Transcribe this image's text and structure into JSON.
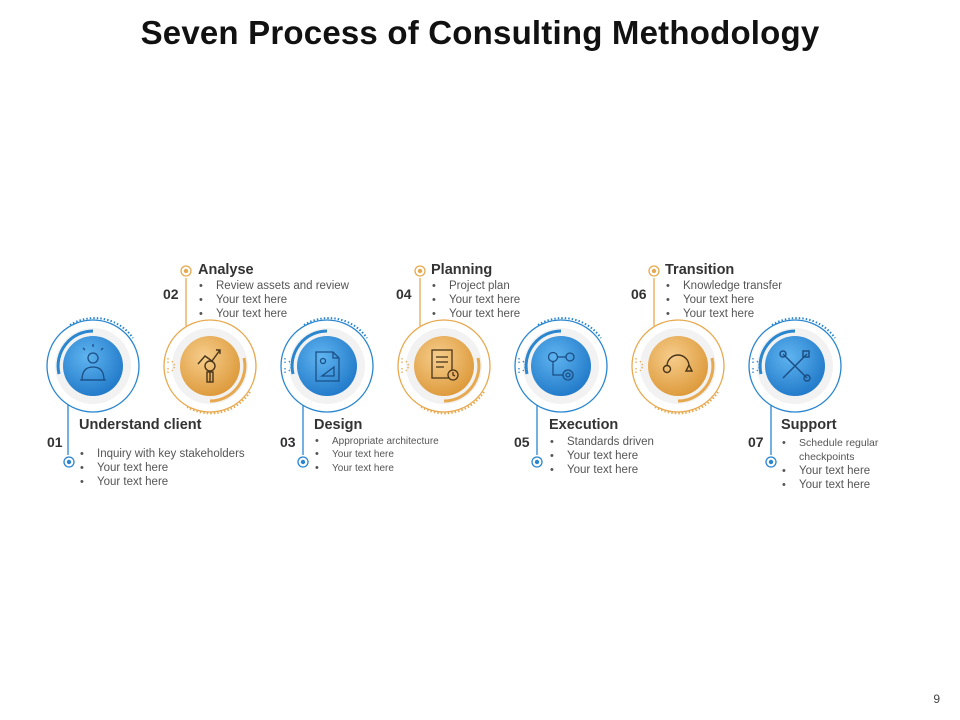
{
  "title": "Seven Process of Consulting Methodology",
  "page_number": "9",
  "colors": {
    "blue": "#2f8fd6",
    "blue_dark": "#1d6fb8",
    "orange": "#e7a94f",
    "orange_dark": "#d48f2f"
  },
  "steps": [
    {
      "number": "01",
      "title": "Understand client",
      "icon": "consultant-icon",
      "color": "blue",
      "bullets": [
        "Inquiry with key stakeholders",
        "Your text here",
        "Your text here"
      ]
    },
    {
      "number": "02",
      "title": "Analyse",
      "icon": "analysis-chart-icon",
      "color": "orange",
      "bullets": [
        "Review assets and review",
        "Your text here",
        "Your text here"
      ]
    },
    {
      "number": "03",
      "title": "Design",
      "icon": "design-document-icon",
      "color": "blue",
      "bullets": [
        "Appropriate architecture",
        "Your text here",
        "Your text here"
      ]
    },
    {
      "number": "04",
      "title": "Planning",
      "icon": "plan-document-icon",
      "color": "orange",
      "bullets": [
        "Project plan",
        "Your text here",
        "Your text here"
      ]
    },
    {
      "number": "05",
      "title": "Execution",
      "icon": "gears-workflow-icon",
      "color": "blue",
      "bullets": [
        "Standards driven",
        "Your text here",
        "Your text here"
      ]
    },
    {
      "number": "06",
      "title": "Transition",
      "icon": "transition-cycle-icon",
      "color": "orange",
      "bullets": [
        "Knowledge transfer",
        "Your text here",
        "Your text here"
      ]
    },
    {
      "number": "07",
      "title": "Support",
      "icon": "tools-support-icon",
      "color": "blue",
      "bullets": [
        "Schedule regular checkpoints",
        "Your text here",
        "Your text here"
      ]
    }
  ]
}
